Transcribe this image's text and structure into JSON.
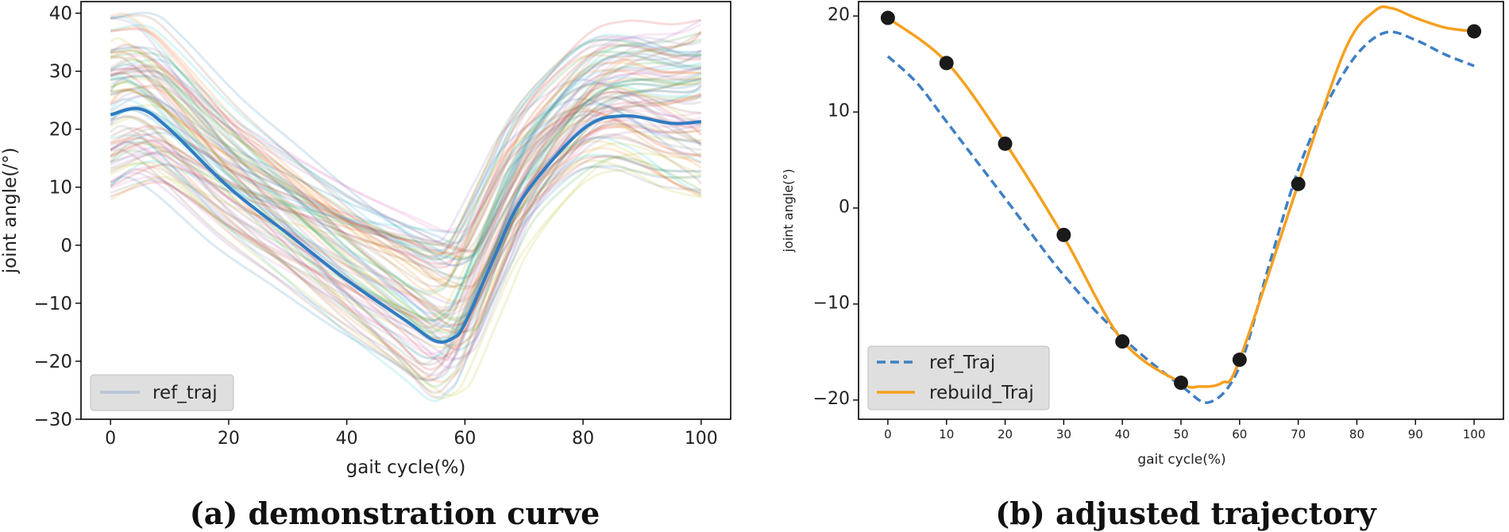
{
  "chart_data": [
    {
      "type": "line",
      "caption": "(a) demonstration curve",
      "xlabel": "gait cycle(%)",
      "ylabel": "joint angle(/°)",
      "xlim": [
        -5,
        105
      ],
      "ylim": [
        -30,
        42
      ],
      "xticks": [
        0,
        20,
        40,
        60,
        80,
        100
      ],
      "yticks": [
        -30,
        -20,
        -10,
        0,
        10,
        20,
        30,
        40
      ],
      "legend": {
        "position": "bottom-left",
        "entries": [
          {
            "label": "ref_traj",
            "color": "#b9c7d6"
          }
        ]
      },
      "mean_series": {
        "name": "mean",
        "color": "#2f7bc2",
        "x": [
          0,
          5,
          10,
          20,
          30,
          40,
          50,
          55,
          58,
          60,
          65,
          70,
          80,
          87,
          95,
          100
        ],
        "y": [
          22.5,
          23.5,
          20,
          10,
          2,
          -6,
          -13,
          -16.5,
          -16,
          -13.5,
          -2,
          8.5,
          20,
          22.3,
          21,
          21.3
        ]
      },
      "demonstrations": {
        "count": 90,
        "colors": [
          "#1f77b4",
          "#ff7f0e",
          "#2ca02c",
          "#d62728",
          "#9467bd",
          "#8c564b",
          "#e377c2",
          "#7f7f7f",
          "#bcbd22",
          "#17becf"
        ],
        "start_range": [
          7,
          40
        ],
        "min_range": [
          -27,
          3
        ],
        "end_range": [
          8,
          39
        ]
      }
    },
    {
      "type": "line",
      "caption": "(b) adjusted trajectory",
      "xlabel": "gait cycle(%)",
      "ylabel": "joint angle(°)",
      "xlim": [
        -5,
        105
      ],
      "ylim": [
        -22,
        21.5
      ],
      "xticks": [
        0,
        10,
        20,
        30,
        40,
        50,
        60,
        70,
        80,
        90,
        100
      ],
      "yticks": [
        -20,
        -10,
        0,
        10,
        20
      ],
      "legend": {
        "position": "bottom-left",
        "entries": [
          {
            "label": "ref_Traj",
            "color": "#3f7fc4",
            "style": "dashed"
          },
          {
            "label": "rebuild_Traj",
            "color": "#f5a01f",
            "style": "solid"
          }
        ]
      },
      "series": [
        {
          "name": "ref_Traj",
          "color": "#3f7fc4",
          "style": "dashed",
          "x": [
            0,
            5,
            10,
            20,
            30,
            40,
            50,
            55,
            60,
            65,
            70,
            75,
            80,
            85,
            90,
            95,
            100
          ],
          "y": [
            15.8,
            13,
            9,
            1,
            -7,
            -13.5,
            -18.5,
            -20.2,
            -16.5,
            -6,
            4,
            11,
            16,
            18.3,
            17.5,
            16,
            14.8
          ]
        },
        {
          "name": "rebuild_Traj",
          "color": "#f5a01f",
          "style": "solid",
          "x": [
            0,
            10,
            20,
            30,
            40,
            50,
            53,
            57,
            60,
            70,
            78,
            83,
            86,
            90,
            95,
            100
          ],
          "y": [
            19.8,
            15.2,
            6.8,
            -3,
            -13.8,
            -18.2,
            -18.6,
            -18.2,
            -15.8,
            2.5,
            16.5,
            20.5,
            20.8,
            19.8,
            18.8,
            18.4
          ]
        }
      ],
      "control_points": {
        "color": "#1a1a1a",
        "x": [
          0,
          10,
          20,
          30,
          40,
          50,
          60,
          70,
          100
        ],
        "y": [
          19.8,
          15.1,
          6.7,
          -2.8,
          -13.9,
          -18.2,
          -15.8,
          2.5,
          18.4
        ]
      }
    }
  ]
}
